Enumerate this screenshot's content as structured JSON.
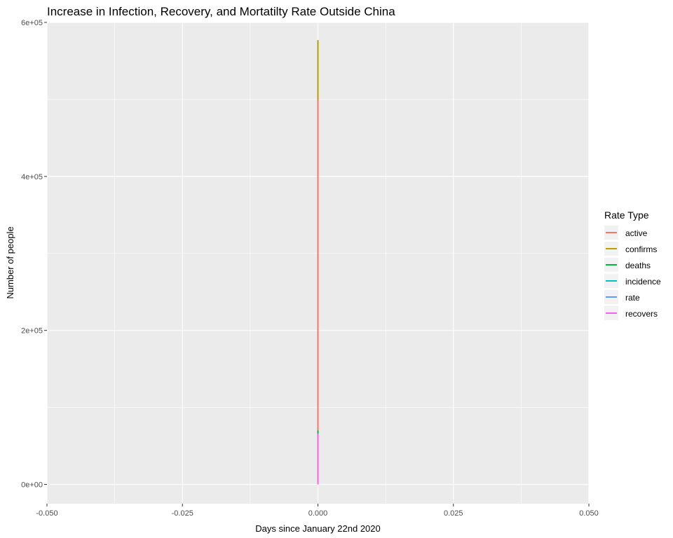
{
  "chart_data": {
    "type": "line",
    "title": "Increase in Infection, Recovery, and Mortatilty Rate Outside China",
    "xlabel": "Days since January 22nd 2020",
    "ylabel": "Number of people",
    "xlim": [
      -0.05,
      0.05
    ],
    "ylim": [
      -25000,
      600000
    ],
    "x_ticks": [
      -0.05,
      -0.025,
      0,
      0.025,
      0.05
    ],
    "x_tick_labels": [
      "-0.050",
      "-0.025",
      "0.000",
      "0.025",
      "0.050"
    ],
    "y_ticks": [
      0,
      200000,
      400000,
      600000
    ],
    "y_tick_labels": [
      "0e+00",
      "2e+05",
      "4e+05",
      "6e+05"
    ],
    "grid": true,
    "legend_title": "Rate Type",
    "legend_position": "right",
    "series": [
      {
        "name": "active",
        "color": "#F8766D",
        "x": [
          0,
          0
        ],
        "y": [
          0,
          500000
        ]
      },
      {
        "name": "confirms",
        "color": "#B79F00",
        "x": [
          0,
          0
        ],
        "y": [
          0,
          577000
        ]
      },
      {
        "name": "deaths",
        "color": "#00BA38",
        "x": [
          0,
          0
        ],
        "y": [
          0,
          70000
        ]
      },
      {
        "name": "incidence",
        "color": "#00BFC4",
        "x": [
          0,
          0
        ],
        "y": [
          0,
          100
        ]
      },
      {
        "name": "rate",
        "color": "#619CFF",
        "x": [
          0,
          0
        ],
        "y": [
          0,
          10
        ]
      },
      {
        "name": "recovers",
        "color": "#F564E3",
        "x": [
          0,
          0
        ],
        "y": [
          0,
          66000
        ]
      }
    ]
  }
}
